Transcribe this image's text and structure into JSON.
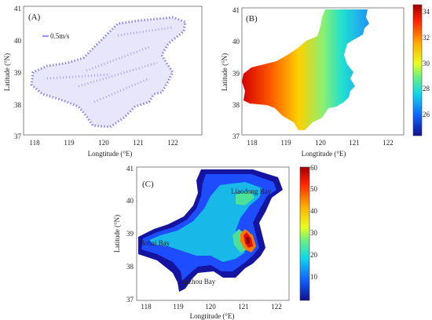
{
  "panels": {
    "a": {
      "label": "(A)",
      "scale_text": "0.5m/s",
      "xlabel": "Longtitude (°E)",
      "ylabel": "Latitude (°N)",
      "xticks": [
        "118",
        "119",
        "120",
        "121",
        "122"
      ],
      "yticks": [
        "41",
        "40",
        "39",
        "38",
        "37"
      ]
    },
    "b": {
      "label": "(B)",
      "xlabel": "Longtitude (°E)",
      "ylabel": "Latitude (°N)",
      "xticks": [
        "118",
        "119",
        "120",
        "121",
        "122"
      ],
      "yticks": [
        "41",
        "40",
        "39",
        "38",
        "37"
      ],
      "colorbar_ticks": [
        "34",
        "32",
        "30",
        "28",
        "26"
      ]
    },
    "c": {
      "label": "(C)",
      "xlabel": "Longtitude (°E)",
      "ylabel": "Latitude (°N)",
      "xticks": [
        "118",
        "119",
        "120",
        "121",
        "122"
      ],
      "yticks": [
        "41",
        "40",
        "39",
        "38",
        "37"
      ],
      "colorbar_ticks": [
        "60",
        "50",
        "40",
        "30",
        "20",
        "10"
      ],
      "places": [
        "Liaodong Bay",
        "Bohai Bay",
        "Laizhou Bay"
      ]
    }
  },
  "colors": {
    "vector": "#3a2bd6",
    "axis": "#666666"
  }
}
